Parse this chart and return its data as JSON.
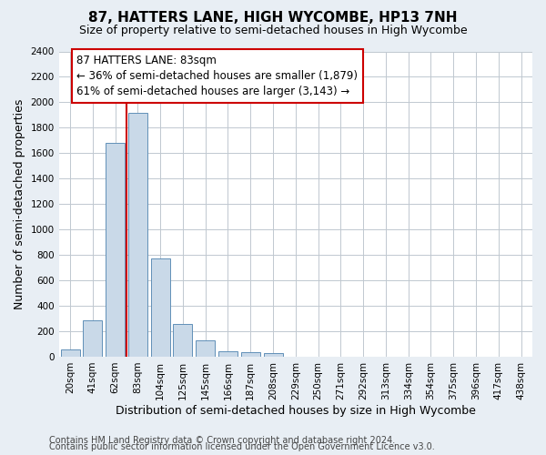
{
  "title": "87, HATTERS LANE, HIGH WYCOMBE, HP13 7NH",
  "subtitle": "Size of property relative to semi-detached houses in High Wycombe",
  "xlabel": "Distribution of semi-detached houses by size in High Wycombe",
  "ylabel": "Number of semi-detached properties",
  "categories": [
    "20sqm",
    "41sqm",
    "62sqm",
    "83sqm",
    "104sqm",
    "125sqm",
    "145sqm",
    "166sqm",
    "187sqm",
    "208sqm",
    "229sqm",
    "250sqm",
    "271sqm",
    "292sqm",
    "313sqm",
    "334sqm",
    "354sqm",
    "375sqm",
    "396sqm",
    "417sqm",
    "438sqm"
  ],
  "values": [
    60,
    285,
    1680,
    1920,
    775,
    255,
    130,
    40,
    35,
    30,
    0,
    0,
    0,
    0,
    0,
    0,
    0,
    0,
    0,
    0,
    0
  ],
  "bar_color": "#c9d9e8",
  "bar_edge_color": "#6090b8",
  "property_bar_index": 3,
  "annotation_line1": "87 HATTERS LANE: 83sqm",
  "annotation_line2": "← 36% of semi-detached houses are smaller (1,879)",
  "annotation_line3": "61% of semi-detached houses are larger (3,143) →",
  "red_line_color": "#cc0000",
  "annotation_box_color": "#ffffff",
  "annotation_box_edge": "#cc0000",
  "ylim": [
    0,
    2400
  ],
  "yticks": [
    0,
    200,
    400,
    600,
    800,
    1000,
    1200,
    1400,
    1600,
    1800,
    2000,
    2200,
    2400
  ],
  "footer1": "Contains HM Land Registry data © Crown copyright and database right 2024.",
  "footer2": "Contains public sector information licensed under the Open Government Licence v3.0.",
  "background_color": "#e8eef4",
  "plot_background": "#ffffff",
  "grid_color": "#c0c8d0",
  "title_fontsize": 11,
  "subtitle_fontsize": 9,
  "xlabel_fontsize": 9,
  "ylabel_fontsize": 9,
  "tick_fontsize": 7.5,
  "annotation_fontsize": 8.5,
  "footer_fontsize": 7
}
